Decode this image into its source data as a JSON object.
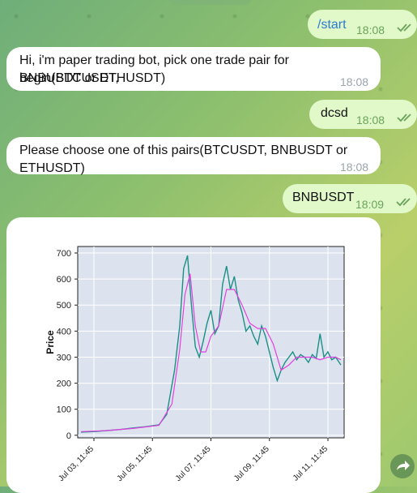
{
  "messages": [
    {
      "id": "m1",
      "direction": "out",
      "text": "/start",
      "time": "18:08"
    },
    {
      "id": "m2",
      "direction": "in",
      "lines": [
        "Hi, i'm paper trading bot, pick one trade pair for begin(BTCUSDT,",
        "BNBUSDT or ETHUSDT)"
      ],
      "time": "18:08"
    },
    {
      "id": "m3",
      "direction": "out",
      "text": "dcsd",
      "time": "18:08"
    },
    {
      "id": "m4",
      "direction": "in",
      "text": "Please choose one of this pairs(BTCUSDT, BNBUSDT or ETHUSDT)",
      "time": "18:08"
    },
    {
      "id": "m5",
      "direction": "out",
      "text": "BNBUSDT",
      "time": "18:09"
    }
  ],
  "chart_data": {
    "type": "line",
    "ylabel": "Price",
    "ylim": [
      -10,
      725
    ],
    "yticks": [
      0,
      100,
      200,
      300,
      400,
      500,
      600,
      700
    ],
    "xticks": [
      "Jul 03, 11:45",
      "Jul 05, 11:45",
      "Jul 07, 11:45",
      "Jul 09, 11:45",
      "Jul 11, 11:45"
    ],
    "xlim": [
      0,
      10
    ],
    "series": [
      {
        "color": "#1a8f86",
        "x": [
          0.0,
          0.6,
          1.0,
          1.5,
          2.0,
          2.5,
          3.0,
          3.3,
          3.6,
          3.8,
          3.95,
          4.1,
          4.25,
          4.4,
          4.55,
          4.7,
          4.85,
          5.0,
          5.15,
          5.3,
          5.45,
          5.6,
          5.75,
          5.9,
          6.05,
          6.2,
          6.35,
          6.5,
          6.65,
          6.8,
          6.95,
          7.1,
          7.25,
          7.4,
          7.55,
          7.7,
          7.85,
          8.0,
          8.15,
          8.3,
          8.45,
          8.6,
          8.75,
          8.9,
          9.05,
          9.2,
          9.35,
          9.5,
          9.65,
          9.8,
          10.0
        ],
        "y": [
          12,
          15,
          18,
          22,
          28,
          33,
          40,
          80,
          250,
          420,
          640,
          690,
          500,
          340,
          300,
          360,
          430,
          480,
          390,
          420,
          580,
          650,
          560,
          610,
          520,
          470,
          400,
          420,
          380,
          350,
          420,
          380,
          320,
          260,
          210,
          250,
          280,
          300,
          320,
          290,
          310,
          300,
          280,
          310,
          295,
          390,
          300,
          320,
          290,
          300,
          270
        ]
      },
      {
        "color": "#e040e0",
        "x": [
          0.0,
          1.0,
          2.0,
          3.0,
          3.5,
          3.8,
          4.0,
          4.2,
          4.4,
          4.6,
          4.8,
          5.0,
          5.3,
          5.6,
          5.9,
          6.2,
          6.5,
          6.8,
          7.1,
          7.4,
          7.7,
          8.0,
          8.3,
          8.6,
          8.9,
          9.2,
          9.5,
          9.8,
          10.0
        ],
        "y": [
          14,
          18,
          26,
          38,
          120,
          330,
          540,
          620,
          420,
          320,
          320,
          380,
          420,
          560,
          560,
          500,
          430,
          410,
          410,
          350,
          250,
          270,
          300,
          300,
          300,
          290,
          300,
          300,
          290
        ]
      }
    ]
  },
  "icons": {
    "read": "double-check-icon",
    "share": "share-arrow-icon"
  }
}
